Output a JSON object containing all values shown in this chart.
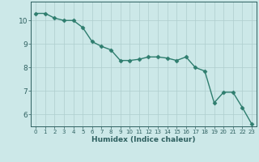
{
  "xlabel": "Humidex (Indice chaleur)",
  "x": [
    0,
    1,
    2,
    3,
    4,
    5,
    6,
    7,
    8,
    9,
    10,
    11,
    12,
    13,
    14,
    15,
    16,
    17,
    18,
    19,
    20,
    21,
    22,
    23
  ],
  "y": [
    10.3,
    10.3,
    10.1,
    10.0,
    10.0,
    9.7,
    9.1,
    8.9,
    8.75,
    8.3,
    8.3,
    8.35,
    8.45,
    8.45,
    8.4,
    8.3,
    8.45,
    8.0,
    7.85,
    6.5,
    6.95,
    6.95,
    6.3,
    5.6
  ],
  "line_color": "#2e7d6e",
  "marker": "D",
  "marker_size": 2.5,
  "bg_color": "#cce8e8",
  "grid_color": "#aecece",
  "axis_color": "#2e6060",
  "tick_color": "#2e6060",
  "ylim": [
    5.5,
    10.8
  ],
  "xlim": [
    -0.5,
    23.5
  ],
  "yticks": [
    6,
    7,
    8,
    9,
    10
  ],
  "xticks": [
    0,
    1,
    2,
    3,
    4,
    5,
    6,
    7,
    8,
    9,
    10,
    11,
    12,
    13,
    14,
    15,
    16,
    17,
    18,
    19,
    20,
    21,
    22,
    23
  ],
  "xlabel_fontsize": 6.5,
  "xlabel_fontweight": "bold",
  "tick_fontsize_x": 5,
  "tick_fontsize_y": 6.5,
  "linewidth": 1.0
}
